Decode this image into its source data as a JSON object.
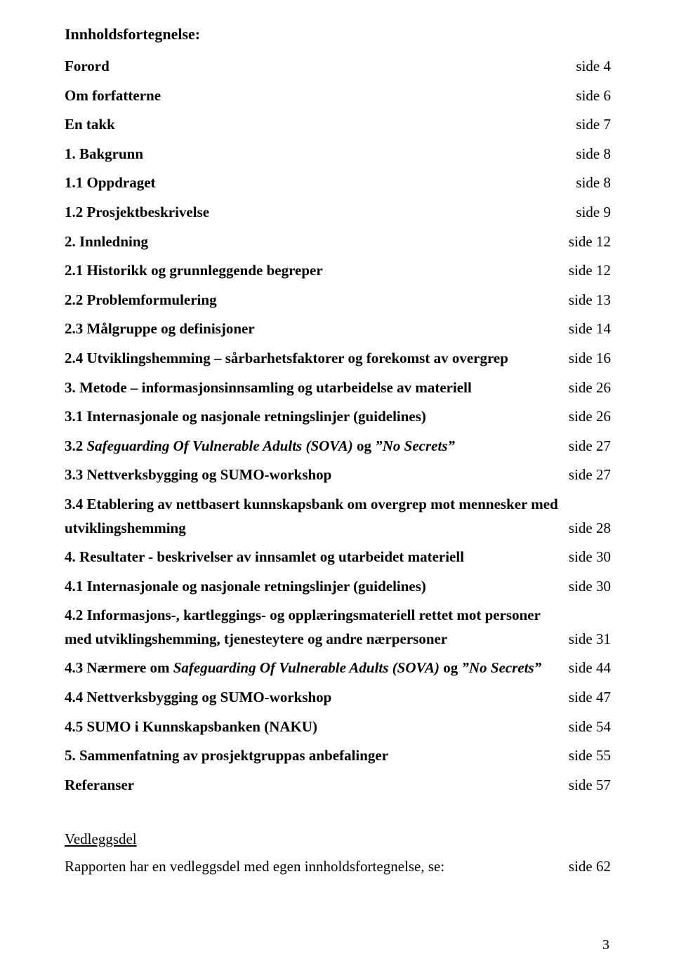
{
  "title": "Innholdsfortegnelse:",
  "entries": [
    {
      "type": "single",
      "label": "Forord",
      "bold": true,
      "page": "side  4"
    },
    {
      "type": "single",
      "label": "Om forfatterne",
      "bold": true,
      "page": "side  6"
    },
    {
      "type": "single",
      "label": "En takk",
      "bold": true,
      "page": "side  7"
    },
    {
      "type": "single",
      "label": "1. Bakgrunn",
      "bold": true,
      "page": "side  8"
    },
    {
      "type": "single",
      "label": "1.1 Oppdraget",
      "bold": true,
      "page": "side  8"
    },
    {
      "type": "single",
      "label": "1.2 Prosjektbeskrivelse",
      "bold": true,
      "page": "side  9"
    },
    {
      "type": "single",
      "label": "2. Innledning",
      "bold": true,
      "page": "side 12"
    },
    {
      "type": "single",
      "label": "2.1 Historikk og grunnleggende begreper",
      "bold": true,
      "page": "side 12"
    },
    {
      "type": "single",
      "label": "2.2 Problemformulering",
      "bold": true,
      "page": "side 13"
    },
    {
      "type": "single",
      "label": "2.3 Målgruppe og definisjoner",
      "bold": true,
      "page": "side 14"
    },
    {
      "type": "single",
      "label": "2.4 Utviklingshemming – sårbarhetsfaktorer og forekomst av overgrep",
      "bold": true,
      "page": "side 16"
    },
    {
      "type": "single",
      "label": "3. Metode – informasjonsinnsamling og utarbeidelse av materiell",
      "bold": true,
      "page": "side 26"
    },
    {
      "type": "single",
      "label": "3.1 Internasjonale og nasjonale retningslinjer (guidelines)",
      "bold": true,
      "page": "side 26"
    },
    {
      "type": "mixed",
      "prefix": "3.2 ",
      "italic_part": "Safeguarding Of Vulnerable Adults (SOVA)",
      "mid": " og ",
      "italic_part2": "\"No Secrets\"",
      "page": "side 27"
    },
    {
      "type": "single",
      "label": "3.3 Nettverksbygging og SUMO-workshop",
      "bold": true,
      "page": "side 27"
    },
    {
      "type": "multi",
      "line1": "3.4 Etablering av nettbasert kunnskapsbank om overgrep mot mennesker med",
      "line2": "utviklingshemming",
      "page": "side 28"
    },
    {
      "type": "single",
      "label": "4. Resultater - beskrivelser av innsamlet og utarbeidet materiell",
      "bold": true,
      "page": "side 30"
    },
    {
      "type": "single",
      "label": "4.1 Internasjonale og nasjonale retningslinjer (guidelines)",
      "bold": true,
      "page": "side 30"
    },
    {
      "type": "multi",
      "line1": "4.2 Informasjons-, kartleggings- og opplæringsmateriell rettet mot personer",
      "line2": "med utviklingshemming, tjenesteytere og andre nærpersoner",
      "page": "side 31"
    },
    {
      "type": "mixed2",
      "prefix": "4.3 Nærmere om ",
      "italic_part": "Safeguarding Of Vulnerable Adults (SOVA)",
      "mid": " og ",
      "italic_part2": "\"No Secrets\"",
      "page": "side 44"
    },
    {
      "type": "single",
      "label": "4.4 Nettverksbygging og SUMO-workshop",
      "bold": true,
      "page": "side 47"
    },
    {
      "type": "single",
      "label": "4.5 SUMO i Kunnskapsbanken (NAKU)",
      "bold": true,
      "page": "side 54"
    },
    {
      "type": "single",
      "label": "5. Sammenfatning av prosjektgruppas anbefalinger",
      "bold": true,
      "page": "side 55"
    },
    {
      "type": "single",
      "label": "Referanser",
      "bold": true,
      "page": "side 57"
    }
  ],
  "appendix": {
    "heading": "Vedleggsdel",
    "text": "Rapporten har en vedleggsdel med egen innholdsfortegnelse, se:",
    "page": "side 62"
  },
  "page_number": "3",
  "colors": {
    "background": "#ffffff",
    "text": "#000000"
  },
  "typography": {
    "title_fontsize": 22,
    "body_fontsize": 21,
    "font_family": "Times New Roman"
  }
}
